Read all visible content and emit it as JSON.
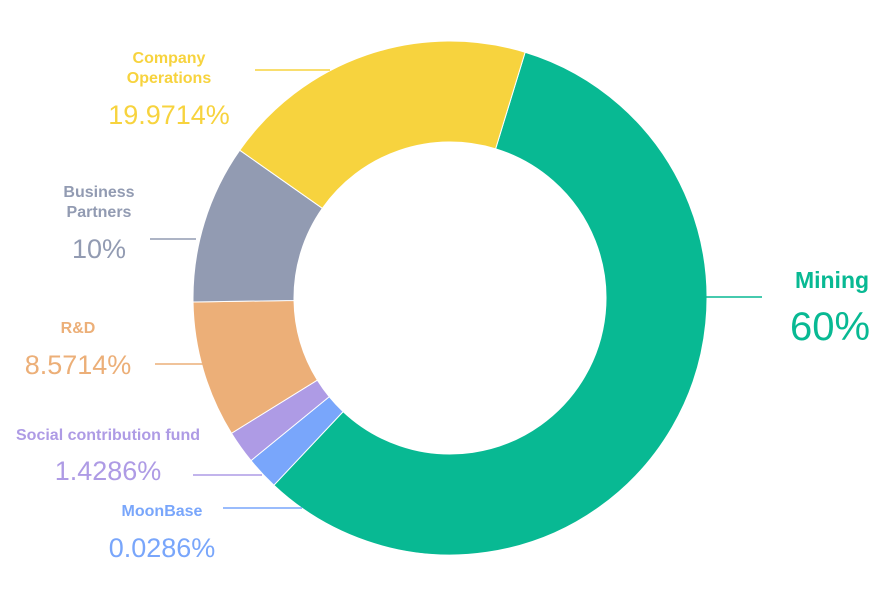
{
  "chart_data": {
    "type": "pie",
    "title": "",
    "donut": true,
    "legend": "none",
    "series": [
      {
        "name": "Mining",
        "label": "Mining",
        "value_text": "60%",
        "value": 60,
        "color": "#08B993"
      },
      {
        "name": "MoonBase",
        "label": "MoonBase",
        "value_text": "0.0286%",
        "value": 0.0286,
        "color": "#79A6FB"
      },
      {
        "name": "Social contribution fund",
        "label": "Social contribution fund",
        "value_text": "1.4286%",
        "value": 1.4286,
        "color": "#AE9BE5"
      },
      {
        "name": "R&D",
        "label": "R&D",
        "value_text": "8.5714%",
        "value": 8.5714,
        "color": "#ECAF78"
      },
      {
        "name": "Business Partners",
        "label": "Business\nPartners",
        "value_text": "10%",
        "value": 10,
        "color": "#929BB2"
      },
      {
        "name": "Company Operations",
        "label": "Company\nOperations",
        "value_text": "19.9714%",
        "value": 19.9714,
        "color": "#F7D33E"
      }
    ]
  },
  "colors": {
    "Mining": "#08B993",
    "MoonBase": "#79A6FB",
    "Social contribution fund": "#AE9BE5",
    "R&D": "#ECAF78",
    "Business Partners": "#929BB2",
    "Company Operations": "#F7D33E"
  }
}
